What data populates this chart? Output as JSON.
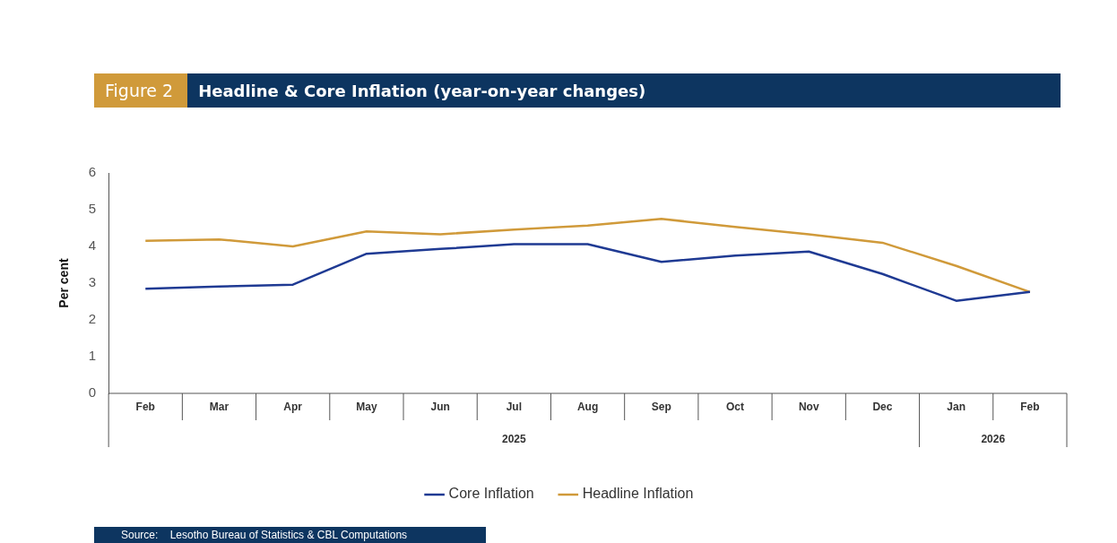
{
  "chart_data": {
    "type": "line",
    "title": "Headline & Core Inflation (year-on-year changes)",
    "subtitle": "Figure 2",
    "ylabel": "Per cent",
    "categories": [
      "Feb",
      "Mar",
      "Apr",
      "May",
      "Jun",
      "Jul",
      "Aug",
      "Sep",
      "Oct",
      "Nov",
      "Dec",
      "Jan",
      "Feb"
    ],
    "series": [
      {
        "name": "Core Inflation",
        "color": "#1f3a93",
        "values": [
          2.85,
          2.91,
          2.96,
          3.8,
          3.93,
          4.06,
          4.06,
          3.58,
          3.75,
          3.86,
          3.25,
          2.52,
          2.76
        ]
      },
      {
        "name": "Headline Inflation",
        "color": "#d09a3a",
        "values": [
          4.15,
          4.19,
          4.0,
          4.41,
          4.33,
          4.46,
          4.57,
          4.75,
          4.53,
          4.33,
          4.1,
          3.47,
          2.76
        ]
      }
    ],
    "ylim": [
      0,
      6
    ],
    "yticks": [
      0,
      1,
      2,
      3,
      4,
      5,
      6
    ],
    "grid": false,
    "legend": "bottom",
    "marker": "none",
    "line_style": "solid",
    "annotations": [
      "2025",
      "2026",
      "Source:    Lesotho Bureau of Statistics & CBL Computations"
    ]
  }
}
